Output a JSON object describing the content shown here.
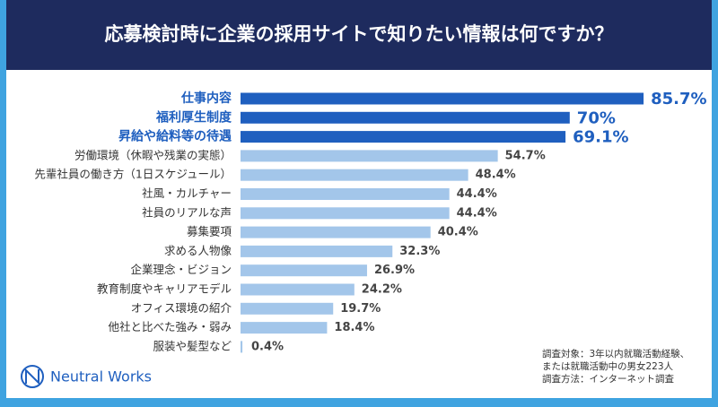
{
  "chart_data": {
    "type": "bar",
    "orientation": "horizontal",
    "title": "応募検討時に企業の採用サイトで知りたい情報は何ですか？",
    "categories": [
      "仕事内容",
      "福利厚生制度",
      "昇給や給料等の待遇",
      "労働環境（休暇や残業の実態）",
      "先輩社員の働き方（1日スケジュール）",
      "社風・カルチャー",
      "社員のリアルな声",
      "募集要項",
      "求める人物像",
      "企業理念・ビジョン",
      "教育制度やキャリアモデル",
      "オフィス環境の紹介",
      "他社と比べた強み・弱み",
      "服装や髪型など"
    ],
    "values": [
      85.7,
      70,
      69.1,
      54.7,
      48.4,
      44.4,
      44.4,
      40.4,
      32.3,
      26.9,
      24.2,
      19.7,
      18.4,
      0.4
    ],
    "value_labels": [
      "85.7%",
      "70%",
      "69.1%",
      "54.7%",
      "48.4%",
      "44.4%",
      "44.4%",
      "40.4%",
      "32.3%",
      "26.9%",
      "24.2%",
      "19.7%",
      "18.4%",
      "0.4%"
    ],
    "colors": [
      "#1f5fbf",
      "#1f5fbf",
      "#1f5fbf",
      "#a3c6ea",
      "#a3c6ea",
      "#a3c6ea",
      "#a3c6ea",
      "#a3c6ea",
      "#a3c6ea",
      "#a3c6ea",
      "#a3c6ea",
      "#a3c6ea",
      "#a3c6ea",
      "#a3c6ea"
    ],
    "highlighted": [
      true,
      true,
      true,
      false,
      false,
      false,
      false,
      false,
      false,
      false,
      false,
      false,
      false,
      false
    ],
    "xlim": [
      0,
      100
    ],
    "note": [
      "調査対象：3年以内就職活動経験、",
      "または就職活動中の男女223人",
      "調査方法：インターネット調査"
    ]
  },
  "logo": {
    "text": "Neutral Works"
  }
}
